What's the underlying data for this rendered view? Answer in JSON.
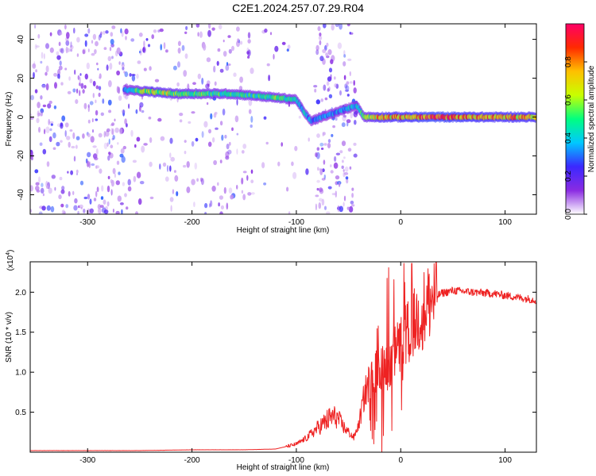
{
  "title": "C2E1.2024.257.07.29.R04",
  "colors": {
    "snr_line": "#ee2222",
    "axes": "#000000",
    "colormap": [
      "#ffffff",
      "#8a2be2",
      "#3b28ff",
      "#00c8ff",
      "#00ff80",
      "#c8ff00",
      "#ffc000",
      "#ff2a00",
      "#ff0066"
    ]
  },
  "chart_data": [
    {
      "type": "heatmap",
      "subtype": "spectrogram",
      "xlabel": "Height of straight line (km)",
      "ylabel": "Frequency (Hz)",
      "xlim": [
        -355,
        130
      ],
      "ylim": [
        -50,
        48
      ],
      "xticks": [
        -300,
        -200,
        -100,
        0,
        100
      ],
      "yticks": [
        -40,
        -20,
        0,
        20,
        40
      ],
      "grid": false,
      "colorbar": {
        "label": "Normalized spectral amplitude",
        "range": [
          0.0,
          1.0
        ],
        "ticks": [
          0.0,
          0.2,
          0.4,
          0.6,
          0.8
        ]
      },
      "noise_regions": [
        {
          "x_range": [
            -355,
            -260
          ],
          "density": 0.55
        },
        {
          "x_range": [
            -260,
            -140
          ],
          "density": 0.28
        },
        {
          "x_range": [
            -140,
            -85
          ],
          "density": 0.08
        },
        {
          "x_range": [
            -82,
            -42
          ],
          "density": 0.62
        }
      ],
      "ridge": [
        {
          "x": -265,
          "f": 14,
          "amp": 0.35
        },
        {
          "x": -240,
          "f": 13,
          "amp": 0.7
        },
        {
          "x": -215,
          "f": 12,
          "amp": 0.6
        },
        {
          "x": -190,
          "f": 12,
          "amp": 0.55
        },
        {
          "x": -165,
          "f": 12,
          "amp": 0.5
        },
        {
          "x": -140,
          "f": 11,
          "amp": 0.5
        },
        {
          "x": -120,
          "f": 10,
          "amp": 0.55
        },
        {
          "x": -100,
          "f": 9,
          "amp": 0.45
        },
        {
          "x": -92,
          "f": 2,
          "amp": 0.4
        },
        {
          "x": -86,
          "f": -2,
          "amp": 0.35
        },
        {
          "x": -42,
          "f": 6,
          "amp": 0.4
        },
        {
          "x": -35,
          "f": 0,
          "amp": 0.55
        },
        {
          "x": -20,
          "f": 0,
          "amp": 0.75
        },
        {
          "x": 0,
          "f": 0,
          "amp": 0.8
        },
        {
          "x": 30,
          "f": 0,
          "amp": 0.9
        },
        {
          "x": 60,
          "f": 0,
          "amp": 0.85
        },
        {
          "x": 90,
          "f": 0,
          "amp": 0.8
        },
        {
          "x": 130,
          "f": 0,
          "amp": 0.8
        }
      ]
    },
    {
      "type": "line",
      "xlabel": "Height of straight line (km)",
      "ylabel": "SNR (10 * v/v)",
      "y_multiplier": "(x10⁴)",
      "y_multiplier_base": "(x10",
      "y_multiplier_exp": "4",
      "xlim": [
        -355,
        130
      ],
      "ylim": [
        0,
        2.38
      ],
      "xticks": [
        -300,
        -200,
        -100,
        0,
        100
      ],
      "yticks": [
        0.5,
        1.0,
        1.5,
        2.0
      ],
      "ytick_labels": [
        "0.5",
        "1.0",
        "1.5",
        "2.0"
      ],
      "grid": false,
      "series": [
        {
          "x": [
            -355,
            -300,
            -250,
            -200,
            -150,
            -120,
            -100,
            -90,
            -80,
            -72,
            -65,
            -60,
            -55,
            -50,
            -45,
            -40,
            -35,
            -30,
            -25,
            -20,
            -15,
            -10,
            -5,
            0,
            5,
            10,
            15,
            20,
            25,
            30,
            40,
            50,
            60,
            70,
            80,
            90,
            100,
            110,
            120,
            130
          ],
          "y": [
            0.02,
            0.02,
            0.02,
            0.03,
            0.03,
            0.04,
            0.1,
            0.18,
            0.3,
            0.38,
            0.45,
            0.42,
            0.32,
            0.25,
            0.18,
            0.35,
            0.7,
            0.9,
            0.98,
            1.1,
            1.0,
            1.15,
            1.25,
            1.35,
            1.45,
            1.55,
            1.65,
            1.75,
            1.85,
            1.92,
            1.99,
            2.02,
            2.01,
            2.0,
            1.99,
            1.98,
            1.96,
            1.94,
            1.92,
            1.9
          ]
        }
      ]
    }
  ]
}
